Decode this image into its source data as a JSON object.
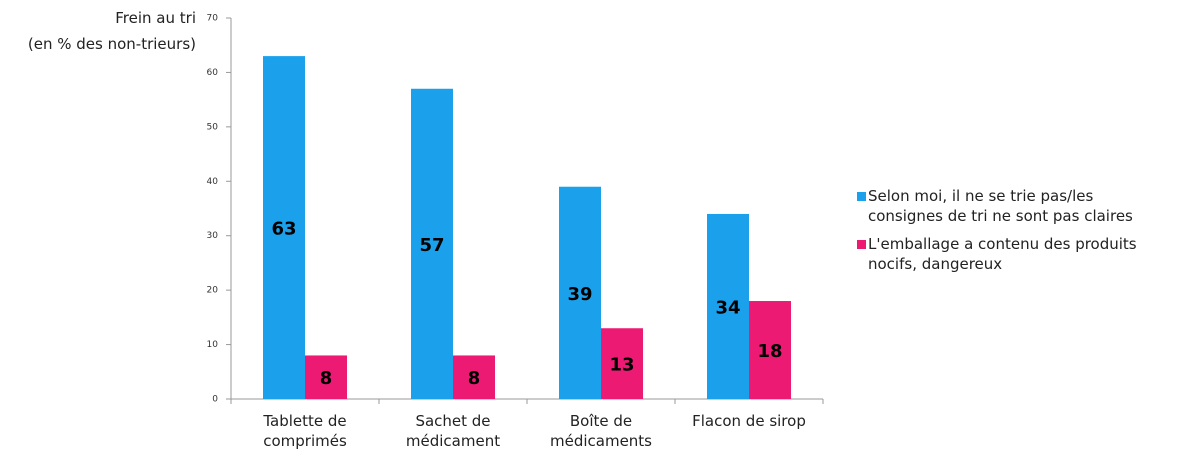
{
  "chart_data": {
    "type": "bar",
    "ylabel": [
      "Frein au tri",
      "(en % des non-trieurs)"
    ],
    "categories": [
      "Tablette de comprimés",
      "Sachet de médicament",
      "Boîte de médicaments",
      "Flacon de sirop"
    ],
    "series": [
      {
        "name": "Selon moi, il ne se trie pas/les consignes de tri ne sont pas claires",
        "color": "#1ba1ec",
        "values": [
          63,
          57,
          39,
          34
        ]
      },
      {
        "name": "L'emballage a contenu des produits nocifs, dangereux",
        "color": "#ec1a73",
        "values": [
          8,
          8,
          13,
          18
        ]
      }
    ],
    "ylim": [
      0,
      70
    ],
    "yticks": [
      0,
      10,
      20,
      30,
      40,
      50,
      60,
      70
    ],
    "grid": false,
    "legend": "right"
  }
}
